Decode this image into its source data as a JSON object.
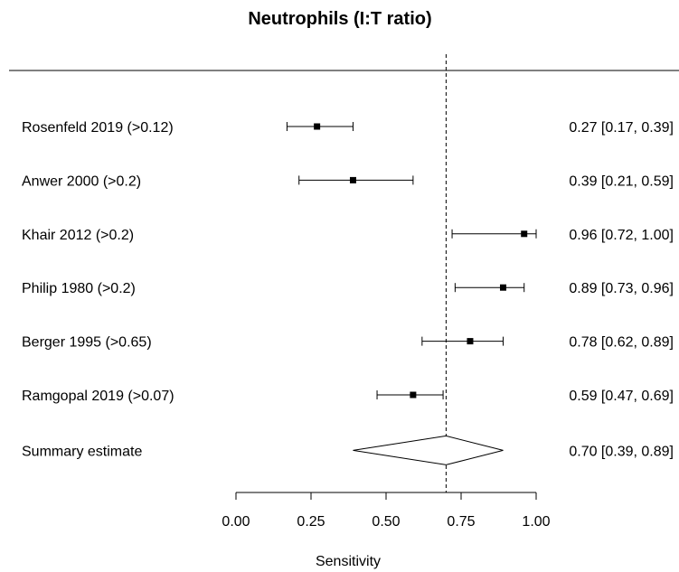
{
  "chart_data": {
    "type": "forest",
    "title": "Neutrophils (I:T ratio)",
    "xlabel": "Sensitivity",
    "xlim": [
      0,
      1
    ],
    "x_ticks": [
      0,
      0.25,
      0.5,
      0.75,
      1
    ],
    "x_tick_labels": [
      "0.00",
      "0.25",
      "0.50",
      "0.75",
      "1.00"
    ],
    "reference_line": 0.7,
    "studies": [
      {
        "label": "Rosenfeld 2019 (>0.12)",
        "estimate": 0.27,
        "lower": 0.17,
        "upper": 0.39,
        "ci_text": "0.27 [0.17, 0.39]"
      },
      {
        "label": "Anwer 2000 (>0.2)",
        "estimate": 0.39,
        "lower": 0.21,
        "upper": 0.59,
        "ci_text": "0.39 [0.21, 0.59]"
      },
      {
        "label": "Khair 2012 (>0.2)",
        "estimate": 0.96,
        "lower": 0.72,
        "upper": 1.0,
        "ci_text": "0.96 [0.72, 1.00]"
      },
      {
        "label": "Philip 1980 (>0.2)",
        "estimate": 0.89,
        "lower": 0.73,
        "upper": 0.96,
        "ci_text": "0.89 [0.73, 0.96]"
      },
      {
        "label": "Berger 1995 (>0.65)",
        "estimate": 0.78,
        "lower": 0.62,
        "upper": 0.89,
        "ci_text": "0.78 [0.62, 0.89]"
      },
      {
        "label": "Ramgopal 2019 (>0.07)",
        "estimate": 0.59,
        "lower": 0.47,
        "upper": 0.69,
        "ci_text": "0.59 [0.47, 0.69]"
      }
    ],
    "summary": {
      "label": "Summary estimate",
      "estimate": 0.7,
      "lower": 0.39,
      "upper": 0.89,
      "ci_text": "0.70 [0.39, 0.89]"
    }
  }
}
